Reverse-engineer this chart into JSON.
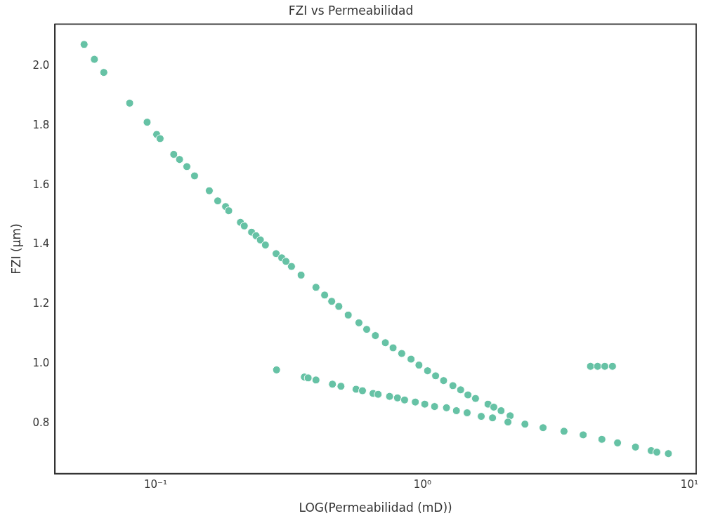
{
  "chart_data": {
    "type": "scatter",
    "title": "FZI vs Permeabilidad",
    "xlabel": "LOG(Permeabilidad (mD))",
    "ylabel": "FZI (µm)",
    "log": "x",
    "grid": false,
    "legend": false,
    "marker": "circle",
    "xlim": [
      0.042,
      10.6
    ],
    "xticks": [
      {
        "value": 0.1,
        "label": "10⁻¹"
      },
      {
        "value": 1,
        "label": "10⁰"
      },
      {
        "value": 10,
        "label": "10¹"
      }
    ],
    "ylim": [
      0.632,
      2.14
    ],
    "yticks": [
      {
        "value": 0.8,
        "label": "0.8"
      },
      {
        "value": 1.0,
        "label": "1.0"
      },
      {
        "value": 1.2,
        "label": "1.2"
      },
      {
        "value": 1.4,
        "label": "1.4"
      },
      {
        "value": 1.6,
        "label": "1.6"
      },
      {
        "value": 1.8,
        "label": "1.8"
      },
      {
        "value": 2.0,
        "label": "2.0"
      }
    ],
    "series": [
      {
        "color": "#66c2a5",
        "x": [
          0.054,
          0.059,
          0.064,
          0.08,
          0.093,
          0.101,
          0.104,
          0.117,
          0.123,
          0.131,
          0.14,
          0.159,
          0.171,
          0.183,
          0.188,
          0.208,
          0.215,
          0.229,
          0.238,
          0.247,
          0.258,
          0.283,
          0.297,
          0.308,
          0.323,
          0.351,
          0.399,
          0.43,
          0.457,
          0.486,
          0.527,
          0.578,
          0.618,
          0.666,
          0.726,
          0.776,
          0.836,
          0.906,
          0.97,
          1.045,
          1.12,
          1.2,
          1.3,
          1.39,
          1.48,
          1.58,
          1.76,
          1.85,
          1.97,
          2.13,
          0.284,
          0.361,
          0.373,
          0.399,
          0.46,
          0.495,
          0.564,
          0.596,
          0.653,
          0.682,
          0.753,
          0.806,
          0.857,
          0.94,
          1.02,
          1.11,
          1.23,
          1.34,
          1.47,
          1.66,
          1.83,
          2.09,
          2.42,
          2.83,
          3.39,
          4.0,
          4.7,
          5.38,
          6.28,
          7.19,
          7.55,
          8.34,
          4.26,
          4.53,
          4.82,
          5.15
        ],
        "values": [
          2.072,
          2.022,
          1.978,
          1.875,
          1.811,
          1.77,
          1.756,
          1.703,
          1.686,
          1.662,
          1.631,
          1.581,
          1.547,
          1.528,
          1.514,
          1.475,
          1.463,
          1.442,
          1.43,
          1.416,
          1.399,
          1.37,
          1.356,
          1.344,
          1.327,
          1.298,
          1.257,
          1.231,
          1.21,
          1.193,
          1.164,
          1.138,
          1.116,
          1.095,
          1.071,
          1.054,
          1.035,
          1.016,
          0.996,
          0.977,
          0.96,
          0.944,
          0.927,
          0.913,
          0.896,
          0.884,
          0.865,
          0.855,
          0.843,
          0.826,
          0.98,
          0.956,
          0.953,
          0.946,
          0.932,
          0.925,
          0.915,
          0.91,
          0.901,
          0.898,
          0.891,
          0.886,
          0.879,
          0.872,
          0.865,
          0.857,
          0.853,
          0.843,
          0.836,
          0.824,
          0.819,
          0.805,
          0.798,
          0.786,
          0.774,
          0.762,
          0.747,
          0.735,
          0.721,
          0.709,
          0.704,
          0.699,
          0.992,
          0.992,
          0.992,
          0.992
        ]
      }
    ]
  }
}
